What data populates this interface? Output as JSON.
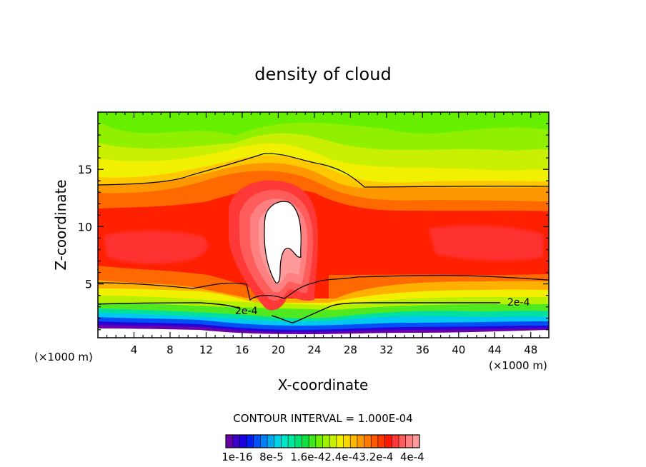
{
  "chart_data": {
    "type": "heatmap",
    "title": "density of cloud",
    "xlabel": "X-coordinate",
    "ylabel": "Z-coordinate",
    "x_unit_label": "(×1000 m)",
    "x_unit_label_right": "(×1000 m)",
    "xlim": [
      0,
      50
    ],
    "ylim": [
      0.3,
      20
    ],
    "xticks": [
      4,
      8,
      12,
      16,
      20,
      24,
      28,
      32,
      36,
      40,
      44,
      48
    ],
    "yticks": [
      5,
      10,
      15
    ],
    "contour_interval_text": "CONTOUR INTERVAL = 1.000E-04",
    "contour_labels": [
      {
        "text": "2e-4",
        "x": 15.5,
        "z": 2.5
      },
      {
        "text": "2e-4",
        "x": 47,
        "z": 3.2
      }
    ],
    "colorbar_labels": [
      "1e-16",
      "8e-5",
      "1.6e-4",
      "2.4e-4",
      "3.2e-4",
      "4e-4"
    ],
    "colorbar_label_text": "1e-16  8e-5  1.6e-42.4e-43.2e-4  4e-4",
    "colorbar_colors": [
      "#6a00a8",
      "#3a00c8",
      "#1800e0",
      "#0020f0",
      "#0050f5",
      "#0080f5",
      "#00aaf0",
      "#00d0e8",
      "#00e8c8",
      "#00e8a0",
      "#00e070",
      "#10e040",
      "#40e820",
      "#70f000",
      "#a0f000",
      "#c8f000",
      "#f0f000",
      "#f8d800",
      "#ffb800",
      "#ff9800",
      "#ff7800",
      "#ff5800",
      "#ff3800",
      "#ff1800",
      "#ff3838",
      "#ff5c5c",
      "#ff8080",
      "#ff9a9a"
    ],
    "field_description": "cloud density contours; maximum (>4e-4) near x≈20, z≈7–12; minimum near surface"
  }
}
